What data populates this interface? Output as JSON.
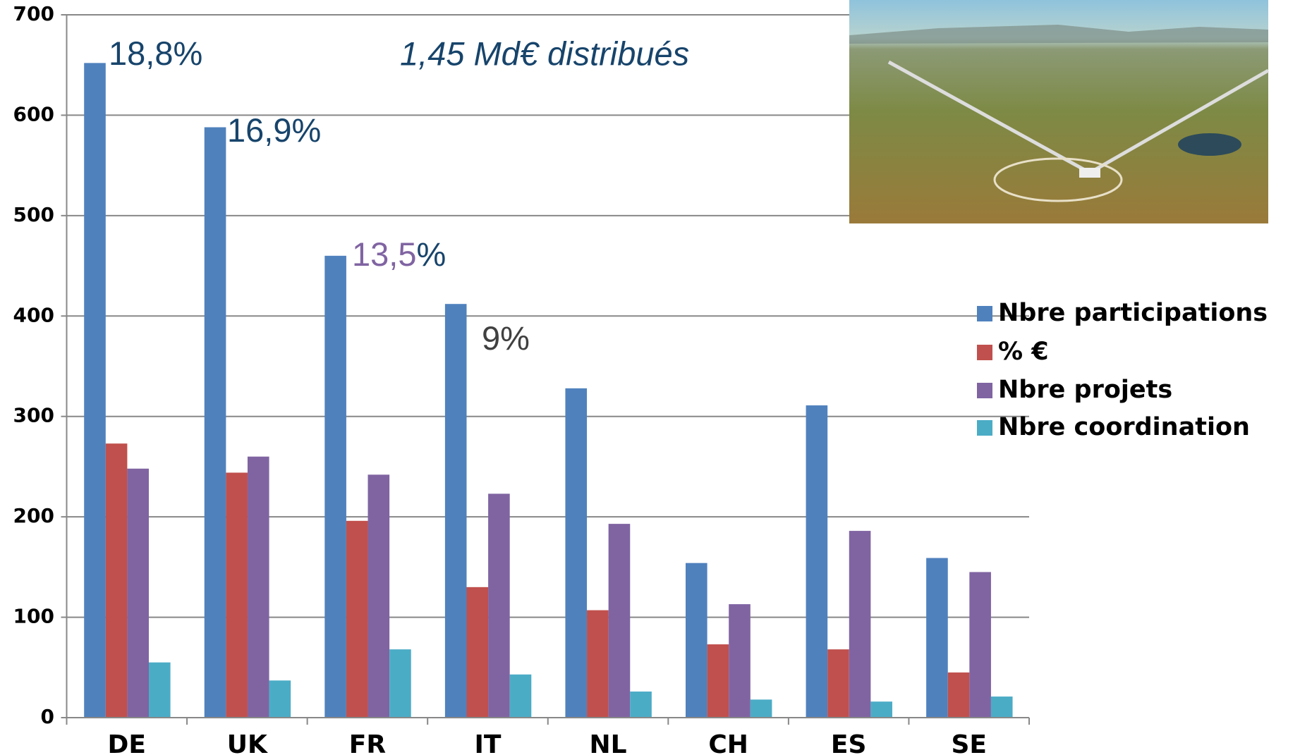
{
  "chart_data": {
    "type": "bar",
    "title": "1,45 Md€ distribués",
    "categories": [
      "DE",
      "UK",
      "FR",
      "IT",
      "NL",
      "CH",
      "ES",
      "SE"
    ],
    "series": [
      {
        "name": "Nbre participations",
        "color": "#4f81bd",
        "values": [
          652,
          588,
          460,
          412,
          328,
          154,
          311,
          159
        ]
      },
      {
        "name": "% €",
        "color": "#c0504d",
        "values": [
          273,
          244,
          196,
          130,
          107,
          73,
          68,
          45
        ]
      },
      {
        "name": "Nbre projets",
        "color": "#8064a2",
        "values": [
          248,
          260,
          242,
          223,
          193,
          113,
          186,
          145
        ]
      },
      {
        "name": "Nbre coordination",
        "color": "#4bacc6",
        "values": [
          55,
          37,
          68,
          43,
          26,
          18,
          16,
          21
        ]
      }
    ],
    "annotations": [
      [
        "18,8%"
      ],
      [
        "16,9%"
      ],
      [
        "13,5",
        "%"
      ],
      [
        "9%"
      ]
    ],
    "ylim": [
      0,
      700
    ],
    "yticks": [
      0,
      100,
      200,
      300,
      400,
      500,
      600,
      700
    ],
    "grid": true,
    "legend": "right"
  }
}
